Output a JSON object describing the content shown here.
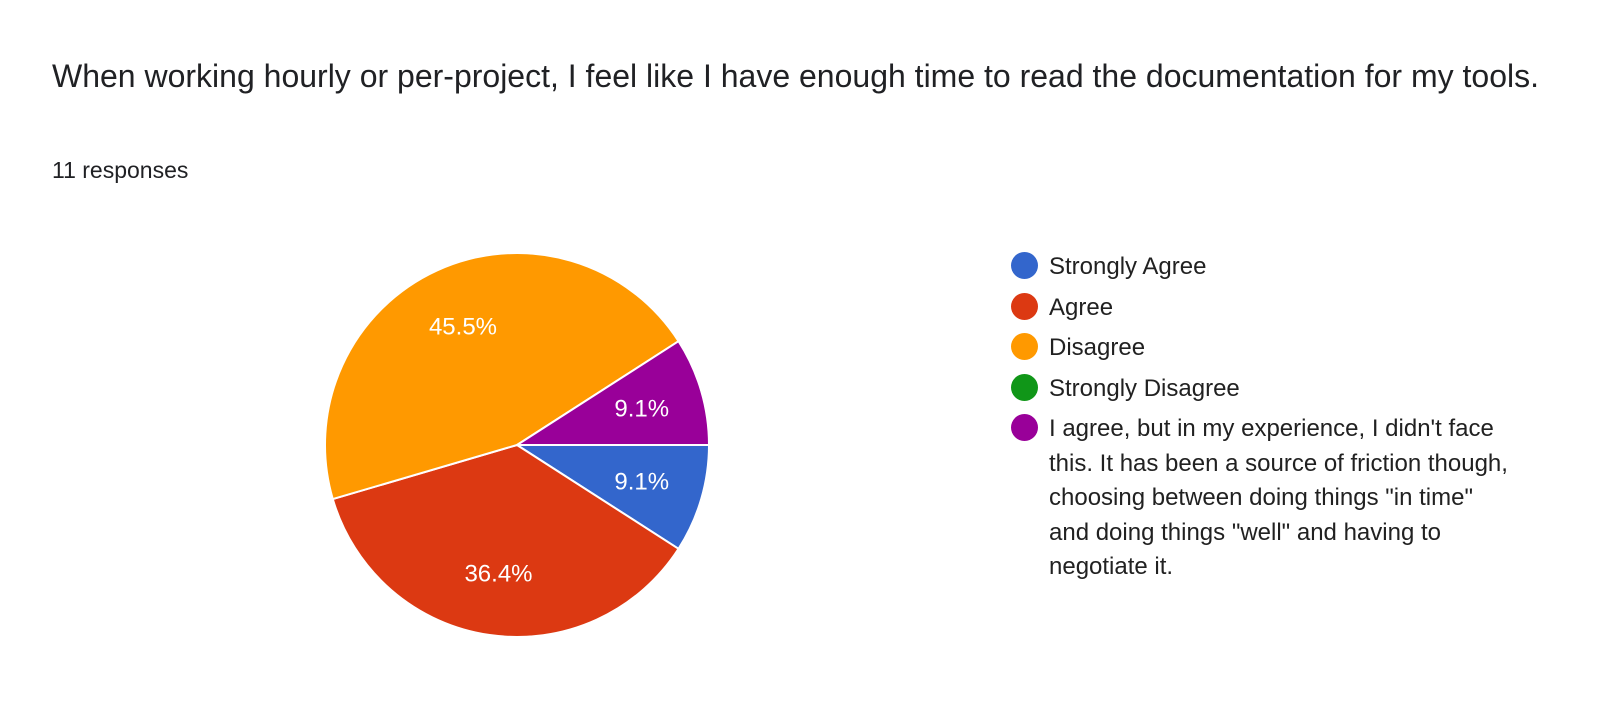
{
  "question": {
    "title": "When working hourly or per-project, I feel like I have enough time to read the documentation for my tools.",
    "response_count": "11 responses"
  },
  "chart_data": {
    "type": "pie",
    "title": "When working hourly or per-project, I feel like I have enough time to read the documentation for my tools.",
    "total_responses": 11,
    "start_angle_deg": 0,
    "direction": "clockwise",
    "legend_position": "right",
    "slices": [
      {
        "name": "Strongly Agree",
        "value": 1,
        "percent_label": "9.1%",
        "color": "#3366cc"
      },
      {
        "name": "Agree",
        "value": 4,
        "percent_label": "36.4%",
        "color": "#dc3912"
      },
      {
        "name": "Disagree",
        "value": 5,
        "percent_label": "45.5%",
        "color": "#ff9900"
      },
      {
        "name": "Strongly Disagree",
        "value": 0,
        "percent_label": "",
        "color": "#109618"
      },
      {
        "name": "I agree, but in my experience, I didn't face this. It has been a source of friction though, choosing between doing things \"in time\" and doing things \"well\" and having to negotiate it.",
        "value": 1,
        "percent_label": "9.1%",
        "color": "#990099"
      }
    ]
  }
}
